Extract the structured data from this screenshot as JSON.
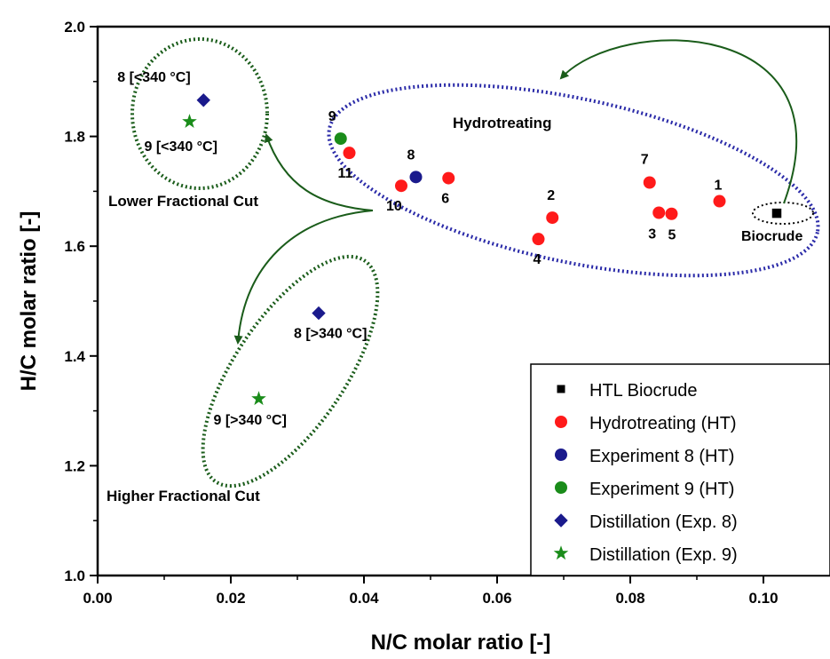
{
  "chart_data": {
    "type": "scatter",
    "title": "",
    "xlabel": "N/C molar ratio [-]",
    "ylabel": "H/C molar ratio [-]",
    "xlim": [
      0.0,
      0.11
    ],
    "ylim": [
      1.0,
      2.0
    ],
    "x_ticks": [
      "0.00",
      "0.02",
      "0.04",
      "0.06",
      "0.08",
      "0.10"
    ],
    "x_tick_values": [
      0.0,
      0.02,
      0.04,
      0.06,
      0.08,
      0.1
    ],
    "y_ticks": [
      "1.0",
      "1.2",
      "1.4",
      "1.6",
      "1.8",
      "2.0"
    ],
    "y_tick_values": [
      1.0,
      1.2,
      1.4,
      1.6,
      1.8,
      2.0
    ],
    "grid": false,
    "legend_position": "bottom-right",
    "series": [
      {
        "name": "HTL Biocrude",
        "marker": "square",
        "color": "#000000",
        "points": [
          {
            "x": 0.102,
            "y": 1.66,
            "label": "Biocrude"
          }
        ]
      },
      {
        "name": "Hydrotreating (HT)",
        "marker": "circle",
        "color": "#ff1a1a",
        "points": [
          {
            "x": 0.0934,
            "y": 1.682,
            "label": "1"
          },
          {
            "x": 0.0683,
            "y": 1.652,
            "label": "2"
          },
          {
            "x": 0.0843,
            "y": 1.661,
            "label": "3"
          },
          {
            "x": 0.0662,
            "y": 1.613,
            "label": "4"
          },
          {
            "x": 0.0862,
            "y": 1.659,
            "label": "5"
          },
          {
            "x": 0.0527,
            "y": 1.724,
            "label": "6"
          },
          {
            "x": 0.0829,
            "y": 1.716,
            "label": "7"
          },
          {
            "x": 0.0456,
            "y": 1.71,
            "label": "10"
          },
          {
            "x": 0.0378,
            "y": 1.77,
            "label": "11"
          }
        ]
      },
      {
        "name": "Experiment 8 (HT)",
        "marker": "circle",
        "color": "#1a1a8c",
        "points": [
          {
            "x": 0.0478,
            "y": 1.726,
            "label": "8"
          }
        ]
      },
      {
        "name": "Experiment 9 (HT)",
        "marker": "circle",
        "color": "#1a8c1a",
        "points": [
          {
            "x": 0.0365,
            "y": 1.796,
            "label": "9"
          }
        ]
      },
      {
        "name": "Distillation (Exp. 8)",
        "marker": "diamond",
        "color": "#1a1a8c",
        "points": [
          {
            "x": 0.0159,
            "y": 1.866,
            "label": "8 [<340 °C]"
          },
          {
            "x": 0.0332,
            "y": 1.478,
            "label": "8 [>340 °C]"
          }
        ]
      },
      {
        "name": "Distillation (Exp. 9)",
        "marker": "star",
        "color": "#1a8c1a",
        "points": [
          {
            "x": 0.0138,
            "y": 1.827,
            "label": "9 [<340 °C]"
          },
          {
            "x": 0.0242,
            "y": 1.322,
            "label": "9 [>340 °C]"
          }
        ]
      }
    ],
    "annotations": {
      "hydrotreating": "Hydrotreating",
      "lower_cut": "Lower Fractional Cut",
      "higher_cut": "Higher Fractional Cut"
    }
  }
}
